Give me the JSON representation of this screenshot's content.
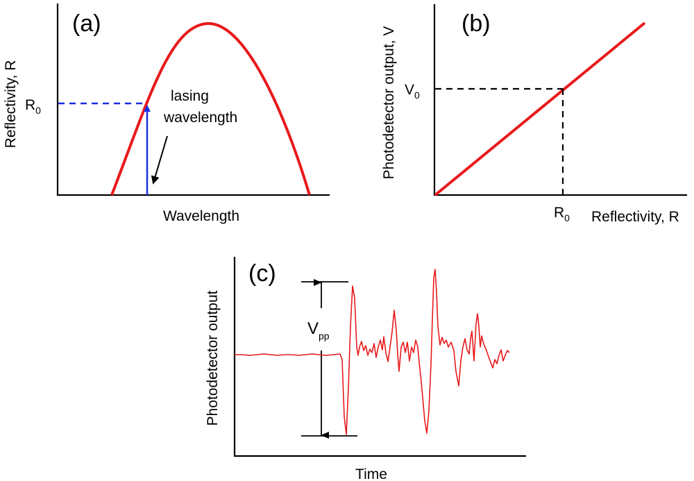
{
  "colors": {
    "curve": "#e8191b",
    "guide_blue": "#1a2ee0",
    "text": "#000000"
  },
  "panel_a": {
    "label": "(a)",
    "ylabel": "Reflectivity, R",
    "xlabel": "Wavelength",
    "r0_main": "R",
    "r0_sub": "0",
    "annotation_line1": "lasing",
    "annotation_line2": "wavelength"
  },
  "panel_b": {
    "label": "(b)",
    "ylabel": "Photodetector output, V",
    "xlabel": "Reflectivity, R",
    "v0_main": "V",
    "v0_sub": "0",
    "r0_main": "R",
    "r0_sub": "0"
  },
  "panel_c": {
    "label": "(c)",
    "ylabel": "Photodetector output",
    "xlabel": "Time",
    "vpp_main": "V",
    "vpp_sub": "pp"
  }
}
